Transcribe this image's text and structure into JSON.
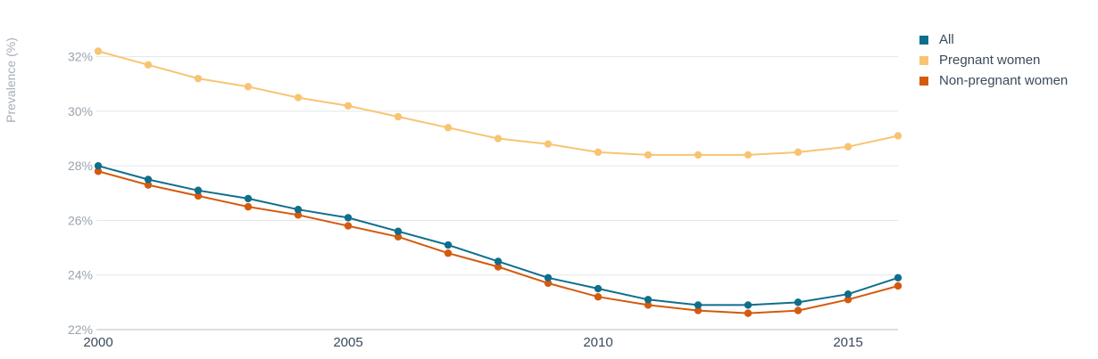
{
  "chart_data": {
    "type": "line",
    "ylabel": "Prevalence (%)",
    "x": [
      2000,
      2001,
      2002,
      2003,
      2004,
      2005,
      2006,
      2007,
      2008,
      2009,
      2010,
      2011,
      2012,
      2013,
      2014,
      2015,
      2016
    ],
    "x_ticks": [
      "2000",
      "2005",
      "2010",
      "2015"
    ],
    "y_ticks": [
      "22%",
      "24%",
      "26%",
      "28%",
      "30%",
      "32%"
    ],
    "ylim": [
      22,
      33
    ],
    "grid": true,
    "legend_position": "top-right",
    "series": [
      {
        "name": "All",
        "color": "#0e6f8d",
        "values": [
          28.0,
          27.5,
          27.1,
          26.8,
          26.4,
          26.1,
          25.6,
          25.1,
          24.5,
          23.9,
          23.5,
          23.1,
          22.9,
          22.9,
          23.0,
          23.3,
          23.9
        ]
      },
      {
        "name": "Pregnant women",
        "color": "#f8c471",
        "values": [
          32.2,
          31.7,
          31.2,
          30.9,
          30.5,
          30.2,
          29.8,
          29.4,
          29.0,
          28.8,
          28.5,
          28.4,
          28.4,
          28.4,
          28.5,
          28.7,
          29.1
        ]
      },
      {
        "name": "Non-pregnant women",
        "color": "#d45a0e",
        "values": [
          27.8,
          27.3,
          26.9,
          26.5,
          26.2,
          25.8,
          25.4,
          24.8,
          24.3,
          23.7,
          23.2,
          22.9,
          22.7,
          22.6,
          22.7,
          23.1,
          23.6
        ]
      }
    ]
  }
}
